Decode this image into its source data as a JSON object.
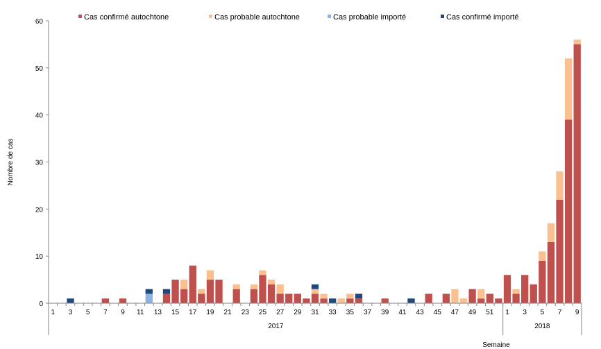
{
  "chart_data": {
    "type": "bar",
    "stacked": true,
    "ylabel": "Nombre de cas",
    "xlabel": "Semaine",
    "ylim": [
      0,
      60
    ],
    "yticks": [
      0,
      10,
      20,
      30,
      40,
      50,
      60
    ],
    "grid": false,
    "legend_position": "top",
    "year_groups": [
      {
        "label": "2017",
        "start": 0,
        "count": 52
      },
      {
        "label": "2018",
        "start": 52,
        "count": 9
      }
    ],
    "categories": [
      "1",
      "2",
      "3",
      "4",
      "5",
      "6",
      "7",
      "8",
      "9",
      "10",
      "11",
      "12",
      "13",
      "14",
      "15",
      "16",
      "17",
      "18",
      "19",
      "20",
      "21",
      "22",
      "23",
      "24",
      "25",
      "26",
      "27",
      "28",
      "29",
      "30",
      "31",
      "32",
      "33",
      "34",
      "35",
      "36",
      "37",
      "38",
      "39",
      "40",
      "41",
      "42",
      "43",
      "44",
      "45",
      "46",
      "47",
      "48",
      "49",
      "50",
      "51",
      "52",
      "1",
      "2",
      "3",
      "4",
      "5",
      "6",
      "7",
      "8",
      "9"
    ],
    "tick_labels": [
      "1",
      "",
      "3",
      "",
      "5",
      "",
      "7",
      "",
      "9",
      "",
      "11",
      "",
      "13",
      "",
      "15",
      "",
      "17",
      "",
      "19",
      "",
      "21",
      "",
      "23",
      "",
      "25",
      "",
      "27",
      "",
      "29",
      "",
      "31",
      "",
      "33",
      "",
      "35",
      "",
      "37",
      "",
      "39",
      "",
      "41",
      "",
      "43",
      "",
      "45",
      "",
      "47",
      "",
      "49",
      "",
      "51",
      "",
      "1",
      "",
      "3",
      "",
      "5",
      "",
      "7",
      "",
      "9"
    ],
    "series": [
      {
        "name": "Cas confirmé autochtone",
        "color": "#c0504d",
        "values": [
          0,
          0,
          0,
          0,
          0,
          0,
          1,
          0,
          1,
          0,
          0,
          0,
          0,
          2,
          5,
          3,
          8,
          2,
          5,
          5,
          0,
          3,
          0,
          3,
          6,
          4,
          2,
          2,
          2,
          1,
          2,
          1,
          0,
          0,
          1,
          1,
          0,
          0,
          1,
          0,
          0,
          0,
          0,
          2,
          0,
          2,
          0,
          0,
          3,
          1,
          2,
          1,
          6,
          2,
          6,
          4,
          9,
          13,
          22,
          39,
          55
        ]
      },
      {
        "name": "Cas probable autochtone",
        "color": "#fac090",
        "values": [
          0,
          0,
          0,
          0,
          0,
          0,
          0,
          0,
          0,
          0,
          0,
          0,
          0,
          0,
          0,
          2,
          0,
          1,
          2,
          0,
          0,
          1,
          0,
          1,
          1,
          1,
          2,
          0,
          0,
          0,
          1,
          1,
          0,
          1,
          1,
          0,
          0,
          0,
          0,
          0,
          0,
          0,
          0,
          0,
          0,
          0,
          3,
          1,
          0,
          2,
          0,
          0,
          0,
          1,
          0,
          0,
          2,
          4,
          6,
          13,
          1
        ]
      },
      {
        "name": "Cas probable importé",
        "color": "#8db3e2",
        "values": [
          0,
          0,
          0,
          0,
          0,
          0,
          0,
          0,
          0,
          0,
          0,
          2,
          0,
          0,
          0,
          0,
          0,
          0,
          0,
          0,
          0,
          0,
          0,
          0,
          0,
          0,
          0,
          0,
          0,
          0,
          0,
          0,
          0,
          0,
          0,
          0,
          0,
          0,
          0,
          0,
          0,
          0,
          0,
          0,
          0,
          0,
          0,
          0,
          0,
          0,
          0,
          0,
          0,
          0,
          0,
          0,
          0,
          0,
          0,
          0,
          0
        ]
      },
      {
        "name": "Cas confirmé importé",
        "color": "#1f497d",
        "values": [
          0,
          0,
          1,
          0,
          0,
          0,
          0,
          0,
          0,
          0,
          0,
          1,
          0,
          1,
          0,
          0,
          0,
          0,
          0,
          0,
          0,
          0,
          0,
          0,
          0,
          0,
          0,
          0,
          0,
          0,
          1,
          0,
          1,
          0,
          0,
          1,
          0,
          0,
          0,
          0,
          0,
          1,
          0,
          0,
          0,
          0,
          0,
          0,
          0,
          0,
          0,
          0,
          0,
          0,
          0,
          0,
          0,
          0,
          0,
          0,
          0
        ]
      }
    ]
  }
}
